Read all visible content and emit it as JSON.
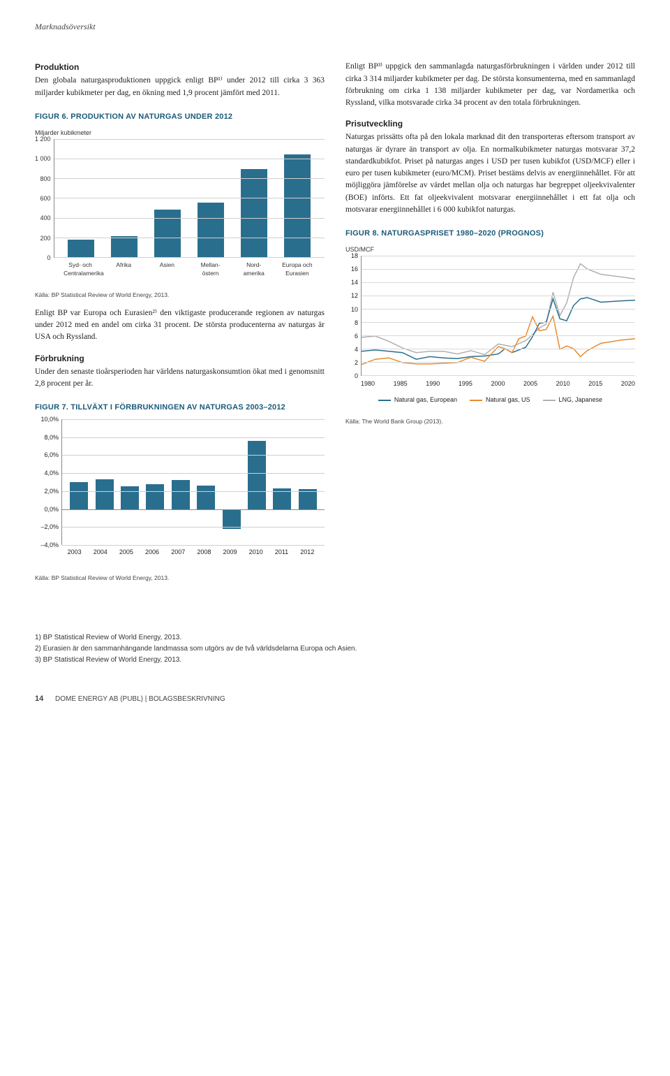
{
  "section_header": "Marknadsöversikt",
  "left": {
    "h1": "Produktion",
    "p1": "Den globala naturgasproduktionen uppgick enligt BP¹⁾ under 2012 till cirka 3 363 miljarder kubikmeter per dag, en ökning med 1,9 procent jämfört med 2011.",
    "fig6_title": "FIGUR 6. PRODUKTION AV NATURGAS UNDER 2012",
    "fig6_unit": "Miljarder kubikmeter",
    "fig6_source": "Källa: BP Statistical Review of World Energy, 2013.",
    "p2": "Enligt BP var Europa och Eurasien²⁾ den viktigaste producerande regionen av naturgas under 2012 med en andel om cirka 31 procent. De största producenterna av naturgas är USA och Ryssland.",
    "h2": "Förbrukning",
    "p3": "Under den senaste tioårsperioden har världens naturgaskonsumtion ökat med i genomsnitt 2,8 procent per år.",
    "fig7_title": "FIGUR 7. TILLVÄXT I FÖRBRUKNINGEN AV NATURGAS 2003–2012",
    "fig7_source": "Källa: BP Statistical Review of World Energy, 2013."
  },
  "right": {
    "p1": "Enligt BP³⁾ uppgick den sammanlagda naturgasförbrukningen i världen under 2012 till cirka 3 314 miljarder kubikmeter per dag. De största konsumenterna, med en sammanlagd förbrukning om cirka 1 138 miljarder kubikmeter per dag, var Nordamerika och Ryssland, vilka motsvarade cirka 34 procent av den totala förbrukningen.",
    "h1": "Prisutveckling",
    "p2": "Naturgas prissätts ofta på den lokala marknad dit den transporteras eftersom transport av naturgas är dyrare än transport av olja. En normalkubikmeter naturgas motsvarar 37,2 standardkubikfot. Priset på naturgas anges i USD per tusen kubikfot (USD/MCF) eller i euro per tusen kubikmeter (euro/MCM). Priset bestäms delvis av energiinnehållet. För att möjliggöra jämförelse av värdet mellan olja och naturgas har begreppet oljeekvivalenter (BOE) införts. Ett fat oljeekvivalent motsvarar energiinnehållet i ett fat olja och motsvarar energiinnehållet i 6 000 kubikfot naturgas.",
    "fig8_title": "FIGUR 8. NATURGASPRISET 1980–2020 (PROGNOS)",
    "fig8_unit": "USD/MCF",
    "fig8_source": "Källa: The World Bank Group (2013).",
    "legend": {
      "eu": "Natural gas, European",
      "us": "Natural gas, US",
      "lng": "LNG, Japanese"
    }
  },
  "fig6": {
    "type": "bar",
    "ylim": [
      0,
      1200
    ],
    "ytick_step": 200,
    "yticks": [
      "1 200",
      "1 000",
      "800",
      "600",
      "400",
      "200",
      "0"
    ],
    "categories": [
      "Syd- och Centralamerika",
      "Afrika",
      "Asien",
      "Mellan- östern",
      "Nord- amerika",
      "Europa och Eurasien"
    ],
    "values": [
      175,
      210,
      485,
      550,
      895,
      1045
    ],
    "bar_color": "#2a6e8e",
    "grid_color": "#d0d0d0",
    "background_color": "#ffffff"
  },
  "fig7": {
    "type": "bar",
    "ylim": [
      -4,
      10
    ],
    "ytick_step": 2,
    "yticks": [
      "10,0%",
      "8,0%",
      "6,0%",
      "4,0%",
      "2,0%",
      "0,0%",
      "–2,0%",
      "–4,0%"
    ],
    "zero_frac_from_top": 0.7143,
    "categories": [
      "2003",
      "2004",
      "2005",
      "2006",
      "2007",
      "2008",
      "2009",
      "2010",
      "2011",
      "2012"
    ],
    "values": [
      3.0,
      3.3,
      2.5,
      2.8,
      3.2,
      2.6,
      -2.2,
      7.6,
      2.3,
      2.2
    ],
    "bar_color": "#2a6e8e",
    "grid_color": "#d0d0d0"
  },
  "fig8": {
    "type": "line",
    "ylim": [
      0,
      18
    ],
    "ytick_step": 2,
    "yticks": [
      "18",
      "16",
      "14",
      "12",
      "10",
      "8",
      "6",
      "4",
      "2",
      "0"
    ],
    "xlim": [
      1980,
      2020
    ],
    "xticks": [
      "1980",
      "1985",
      "1990",
      "1995",
      "2000",
      "2005",
      "2010",
      "2015",
      "2020"
    ],
    "grid_color": "#d8d8d8",
    "series": {
      "eu": {
        "color": "#2a6e8e",
        "width": 1.5,
        "points": [
          [
            1980,
            3.6
          ],
          [
            1982,
            3.8
          ],
          [
            1984,
            3.6
          ],
          [
            1986,
            3.4
          ],
          [
            1988,
            2.4
          ],
          [
            1990,
            2.8
          ],
          [
            1992,
            2.6
          ],
          [
            1994,
            2.5
          ],
          [
            1996,
            2.8
          ],
          [
            1998,
            2.9
          ],
          [
            2000,
            3.2
          ],
          [
            2001,
            4.0
          ],
          [
            2002,
            3.4
          ],
          [
            2004,
            4.2
          ],
          [
            2005,
            5.8
          ],
          [
            2006,
            7.8
          ],
          [
            2007,
            8.0
          ],
          [
            2008,
            11.5
          ],
          [
            2009,
            8.5
          ],
          [
            2010,
            8.2
          ],
          [
            2011,
            10.5
          ],
          [
            2012,
            11.5
          ],
          [
            2013,
            11.7
          ],
          [
            2015,
            11.0
          ],
          [
            2018,
            11.2
          ],
          [
            2020,
            11.3
          ]
        ]
      },
      "us": {
        "color": "#e98a2b",
        "width": 1.5,
        "points": [
          [
            1980,
            1.6
          ],
          [
            1982,
            2.4
          ],
          [
            1984,
            2.6
          ],
          [
            1986,
            1.9
          ],
          [
            1988,
            1.7
          ],
          [
            1990,
            1.7
          ],
          [
            1992,
            1.8
          ],
          [
            1994,
            1.9
          ],
          [
            1996,
            2.7
          ],
          [
            1998,
            2.1
          ],
          [
            2000,
            4.3
          ],
          [
            2001,
            4.0
          ],
          [
            2002,
            3.4
          ],
          [
            2003,
            5.5
          ],
          [
            2004,
            5.9
          ],
          [
            2005,
            8.8
          ],
          [
            2006,
            6.7
          ],
          [
            2007,
            6.9
          ],
          [
            2008,
            8.9
          ],
          [
            2009,
            3.9
          ],
          [
            2010,
            4.4
          ],
          [
            2011,
            4.0
          ],
          [
            2012,
            2.8
          ],
          [
            2013,
            3.7
          ],
          [
            2015,
            4.8
          ],
          [
            2018,
            5.3
          ],
          [
            2020,
            5.5
          ]
        ]
      },
      "lng": {
        "color": "#b0b0b0",
        "width": 1.5,
        "points": [
          [
            1980,
            5.7
          ],
          [
            1982,
            5.9
          ],
          [
            1984,
            5.1
          ],
          [
            1986,
            4.1
          ],
          [
            1988,
            3.4
          ],
          [
            1990,
            3.6
          ],
          [
            1992,
            3.6
          ],
          [
            1994,
            3.2
          ],
          [
            1996,
            3.7
          ],
          [
            1998,
            3.1
          ],
          [
            2000,
            4.7
          ],
          [
            2002,
            4.3
          ],
          [
            2004,
            5.2
          ],
          [
            2005,
            6.1
          ],
          [
            2006,
            7.1
          ],
          [
            2007,
            7.7
          ],
          [
            2008,
            12.5
          ],
          [
            2009,
            9.0
          ],
          [
            2010,
            10.9
          ],
          [
            2011,
            14.7
          ],
          [
            2012,
            16.8
          ],
          [
            2013,
            16.0
          ],
          [
            2015,
            15.2
          ],
          [
            2018,
            14.8
          ],
          [
            2020,
            14.5
          ]
        ]
      }
    }
  },
  "footnotes": {
    "n1": "1)  BP Statistical Review of World Energy, 2013.",
    "n2": "2)  Eurasien är den sammanhängande landmassa som utgörs av de två världsdelarna Europa och Asien.",
    "n3": "3)  BP Statistical Review of World Energy, 2013."
  },
  "footer": {
    "page": "14",
    "text": "DOME ENERGY AB (PUBL)  |  BOLAGSBESKRIVNING"
  }
}
